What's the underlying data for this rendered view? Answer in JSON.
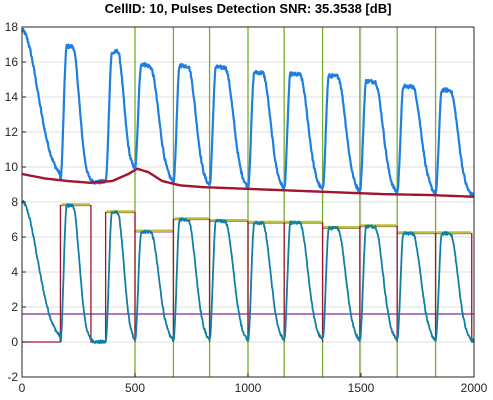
{
  "chart_data": {
    "type": "line",
    "title": "CellID: 10, Pulses Detection  SNR: 35.3538 [dB]",
    "xlabel": "",
    "ylabel": "",
    "xlim": [
      0,
      2000
    ],
    "ylim": [
      -2,
      18
    ],
    "x_ticks": [
      "0",
      "500",
      "1000",
      "1500",
      "2000"
    ],
    "y_ticks": [
      "-2",
      "0",
      "2",
      "4",
      "6",
      "8",
      "10",
      "12",
      "14",
      "16",
      "18"
    ],
    "x_tick_values": [
      0,
      500,
      1000,
      1500,
      2000
    ],
    "y_tick_values": [
      -2,
      0,
      2,
      4,
      6,
      8,
      10,
      12,
      14,
      16,
      18
    ],
    "grid": true,
    "legend": "none",
    "pulse_start_markers": [
      500,
      670,
      830,
      1000,
      1160,
      1330,
      1495,
      1660,
      1830
    ],
    "detection_threshold": 1.6,
    "pulses": [
      {
        "start": 170,
        "end": 305,
        "peak": 16.9,
        "level": 7.8
      },
      {
        "start": 370,
        "end": 500,
        "peak": 16.5,
        "level": 7.4
      },
      {
        "start": 500,
        "end": 670,
        "peak": 15.9,
        "level": 6.3
      },
      {
        "start": 670,
        "end": 830,
        "peak": 15.8,
        "level": 7.0
      },
      {
        "start": 830,
        "end": 1000,
        "peak": 15.7,
        "level": 6.9
      },
      {
        "start": 1000,
        "end": 1160,
        "peak": 15.4,
        "level": 6.8
      },
      {
        "start": 1160,
        "end": 1330,
        "peak": 15.3,
        "level": 6.8
      },
      {
        "start": 1330,
        "end": 1495,
        "peak": 15.2,
        "level": 6.5
      },
      {
        "start": 1495,
        "end": 1660,
        "peak": 14.9,
        "level": 6.6
      },
      {
        "start": 1660,
        "end": 1830,
        "peak": 14.6,
        "level": 6.2
      },
      {
        "start": 1830,
        "end": 1990,
        "peak": 14.4,
        "level": 6.2
      }
    ],
    "baseline": [
      {
        "x": 0,
        "y": 9.6
      },
      {
        "x": 100,
        "y": 9.35
      },
      {
        "x": 200,
        "y": 9.2
      },
      {
        "x": 300,
        "y": 9.1
      },
      {
        "x": 400,
        "y": 9.2
      },
      {
        "x": 470,
        "y": 9.6
      },
      {
        "x": 510,
        "y": 9.9
      },
      {
        "x": 560,
        "y": 9.7
      },
      {
        "x": 620,
        "y": 9.2
      },
      {
        "x": 700,
        "y": 8.95
      },
      {
        "x": 800,
        "y": 8.85
      },
      {
        "x": 1000,
        "y": 8.75
      },
      {
        "x": 1200,
        "y": 8.65
      },
      {
        "x": 1400,
        "y": 8.55
      },
      {
        "x": 1600,
        "y": 8.45
      },
      {
        "x": 1800,
        "y": 8.4
      },
      {
        "x": 2000,
        "y": 8.3
      }
    ],
    "colors": {
      "raw_signal": "#1f7fe0",
      "baseline": "#a2142f",
      "normalized_signal": "#0f7fa8",
      "pulse_fit": "#a2142f",
      "pulse_level": "#b4c43c",
      "markers": "#77ac30",
      "threshold": "#7e2f8e"
    }
  }
}
